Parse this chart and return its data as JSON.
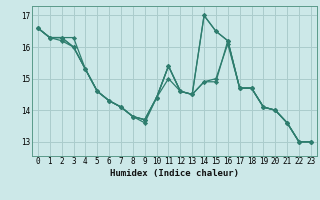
{
  "xlabel": "Humidex (Indice chaleur)",
  "bg_color": "#cce8e8",
  "grid_color": "#aacccc",
  "line_color": "#2e7d6e",
  "marker": "D",
  "marker_size": 2.2,
  "line_width": 0.9,
  "xlim": [
    -0.5,
    23.5
  ],
  "ylim": [
    12.55,
    17.3
  ],
  "yticks": [
    13,
    14,
    15,
    16,
    17
  ],
  "xticks": [
    0,
    1,
    2,
    3,
    4,
    5,
    6,
    7,
    8,
    9,
    10,
    11,
    12,
    13,
    14,
    15,
    16,
    17,
    18,
    19,
    20,
    21,
    22,
    23
  ],
  "tick_fontsize": 5.5,
  "xlabel_fontsize": 6.5,
  "series": [
    [
      16.6,
      16.3,
      16.3,
      16.3,
      15.3,
      14.6,
      14.3,
      14.1,
      13.8,
      13.6,
      14.4,
      15.0,
      14.6,
      14.5,
      14.9,
      14.9,
      16.2,
      14.7,
      14.7,
      14.1,
      14.0,
      13.6,
      13.0,
      13.0
    ],
    [
      16.6,
      16.3,
      16.3,
      16.0,
      15.3,
      14.6,
      14.3,
      14.1,
      13.8,
      13.7,
      14.4,
      15.4,
      14.6,
      14.5,
      17.0,
      16.5,
      16.2,
      14.7,
      14.7,
      14.1,
      14.0,
      13.6,
      13.0,
      13.0
    ],
    [
      16.6,
      16.3,
      16.3,
      16.0,
      15.3,
      14.6,
      14.3,
      14.1,
      13.8,
      13.7,
      14.4,
      15.4,
      14.6,
      14.5,
      17.0,
      16.5,
      16.2,
      14.7,
      14.7,
      14.1,
      14.0,
      13.6,
      13.0,
      13.0
    ],
    [
      16.6,
      16.3,
      16.2,
      16.0,
      15.3,
      14.6,
      14.3,
      14.1,
      13.8,
      13.7,
      14.4,
      15.4,
      14.6,
      14.5,
      14.9,
      15.0,
      16.1,
      14.7,
      14.7,
      14.1,
      14.0,
      13.6,
      13.0,
      13.0
    ]
  ]
}
